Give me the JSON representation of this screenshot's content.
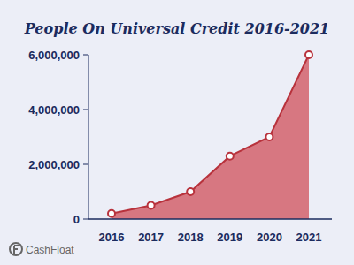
{
  "chart_data": {
    "type": "area",
    "title": "People On Universal Credit 2016-2021",
    "categories": [
      "2016",
      "2017",
      "2018",
      "2019",
      "2020",
      "2021"
    ],
    "values": [
      200000,
      500000,
      1000000,
      2300000,
      3000000,
      6000000
    ],
    "color": "#d6707a",
    "ylim": [
      0,
      6000000
    ],
    "yticks": [
      0,
      {
        "value": 2000000,
        "label": "2,000,000"
      },
      {
        "value": 4000000,
        "label": "4,000,000"
      },
      {
        "value": 6000000,
        "label": "6,000,000"
      }
    ],
    "grid": false,
    "marker": "circle",
    "annotations": [
      "CashFloat"
    ]
  }
}
